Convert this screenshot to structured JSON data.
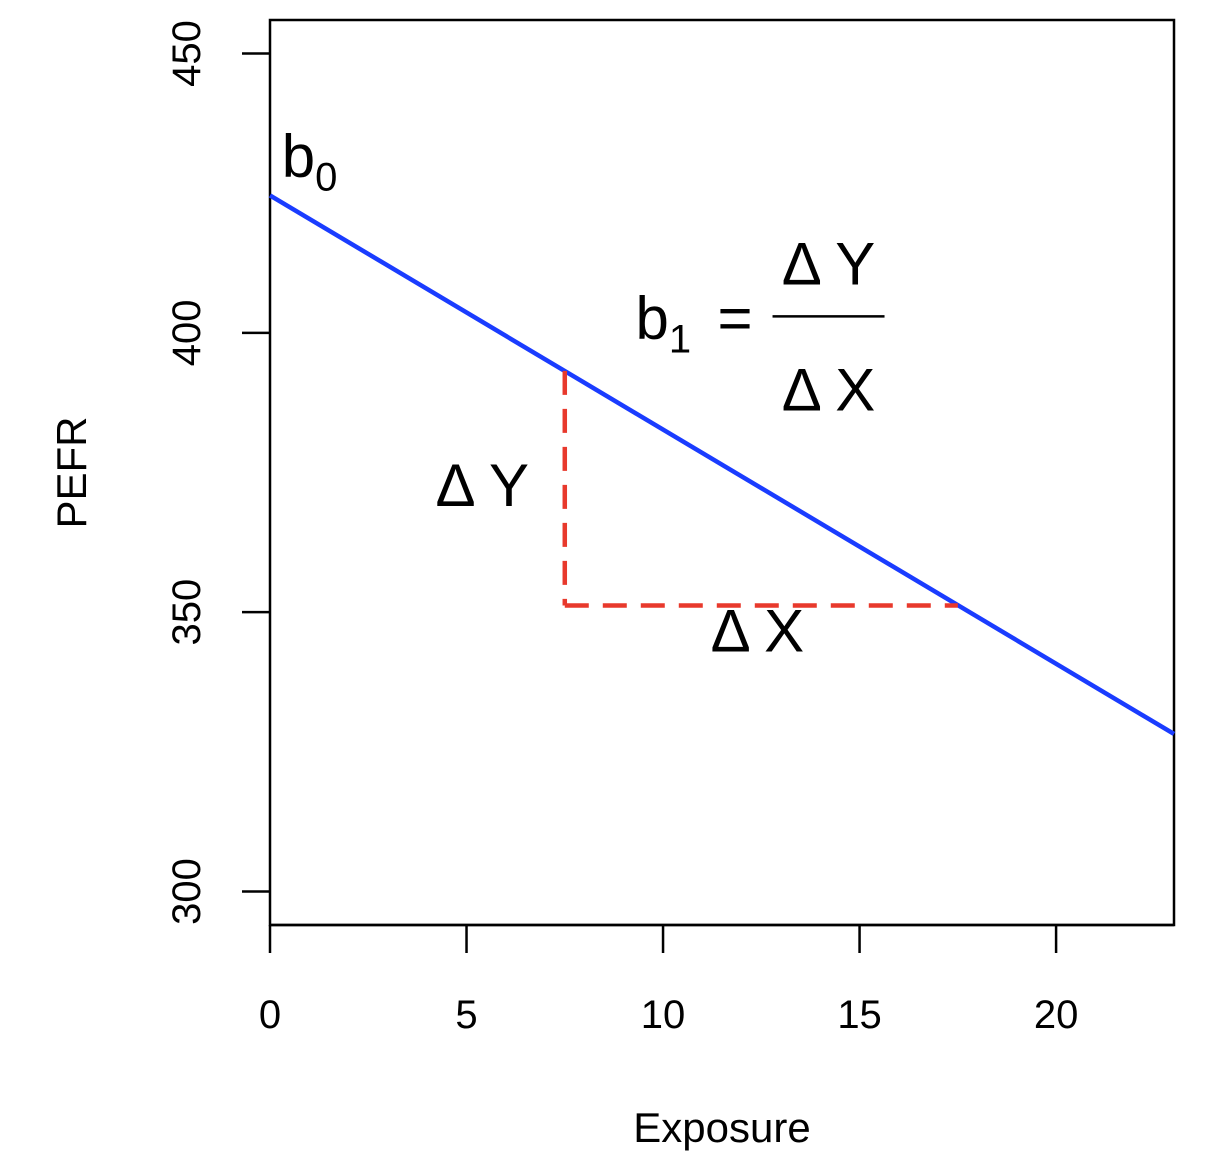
{
  "chart_data": {
    "type": "line",
    "title": "",
    "xlabel": "Exposure",
    "ylabel": "PEFR",
    "xlim": [
      0,
      23
    ],
    "ylim": [
      294,
      456
    ],
    "x_ticks": [
      0,
      5,
      10,
      15,
      20
    ],
    "y_ticks": [
      300,
      350,
      400,
      450
    ],
    "grid": false,
    "legend": "none",
    "series": [
      {
        "color": "#1a3cff",
        "x": [
          0,
          23
        ],
        "y": [
          424.6,
          328.2
        ]
      }
    ],
    "slope_guides": {
      "color": "#e8392c",
      "style": "dashed",
      "vertical": {
        "x": 7.5,
        "y_from": 393.2,
        "y_to": 351.2
      },
      "horizontal": {
        "y": 351.2,
        "x_from": 7.5,
        "x_to": 17.5
      }
    },
    "annotations": {
      "intercept": {
        "base": "b",
        "sub": "0",
        "x": 0.3,
        "y": 428
      },
      "slope": {
        "base": "b",
        "sub": "1",
        "eq": "=",
        "numerator": "Δ Y",
        "denominator": "Δ X",
        "x": 9.3,
        "y": 399
      },
      "delta_y": {
        "text": "Δ Y",
        "x": 5.4,
        "y": 369
      },
      "delta_x": {
        "text": "Δ X",
        "x": 12.4,
        "y": 343
      }
    }
  }
}
